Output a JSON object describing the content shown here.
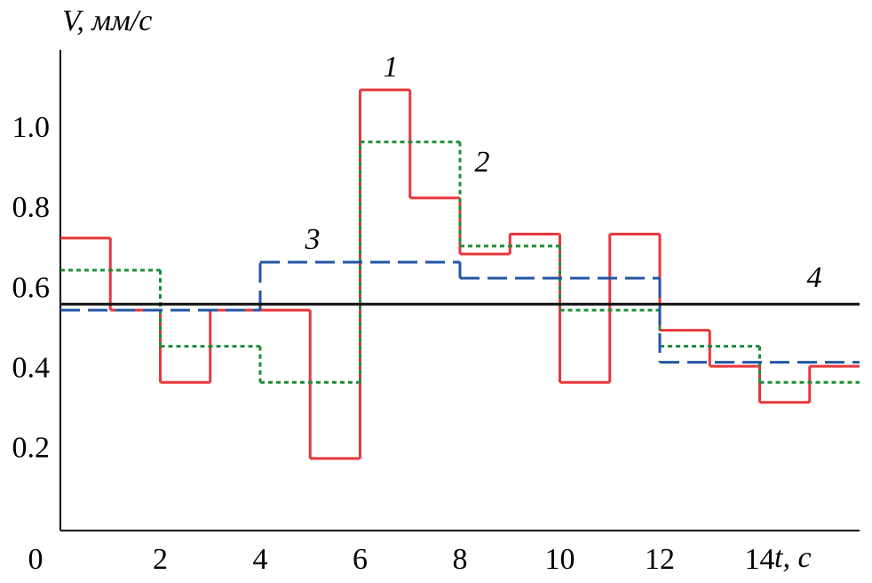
{
  "chart_data": {
    "type": "line",
    "drawstyle": "steps-post",
    "xlabel": "t, с",
    "ylabel": "V, мм/с",
    "xlim": [
      0,
      16
    ],
    "ylim": [
      0,
      1.2
    ],
    "xticks": [
      0,
      2,
      4,
      6,
      8,
      10,
      12,
      14
    ],
    "yticks": [
      0.2,
      0.4,
      0.6,
      0.8,
      {
        "value": 1,
        "label": "1.0"
      }
    ],
    "grid": false,
    "series": [
      {
        "name": "1",
        "color": "#e8363a",
        "linestyle": "solid",
        "x": [
          0,
          1,
          2,
          3,
          4,
          5,
          6,
          7,
          8,
          9,
          10,
          11,
          12,
          13,
          14,
          15
        ],
        "values": [
          0.73,
          0.55,
          0.37,
          0.55,
          0.55,
          0.18,
          1.1,
          0.83,
          0.69,
          0.74,
          0.37,
          0.74,
          0.5,
          0.41,
          0.32,
          0.41
        ]
      },
      {
        "name": "2",
        "color": "#1e8c3a",
        "linestyle": "dotted",
        "x": [
          0,
          2,
          4,
          6,
          8,
          10,
          12,
          14
        ],
        "values": [
          0.65,
          0.46,
          0.37,
          0.97,
          0.71,
          0.55,
          0.46,
          0.37
        ]
      },
      {
        "name": "3",
        "color": "#2255a4",
        "linestyle": "dashed",
        "x": [
          0,
          4,
          8,
          12
        ],
        "values": [
          0.55,
          0.67,
          0.63,
          0.42
        ]
      },
      {
        "name": "4",
        "color": "#111111",
        "linestyle": "solid",
        "x": [
          0
        ],
        "values": [
          0.565
        ]
      }
    ]
  }
}
